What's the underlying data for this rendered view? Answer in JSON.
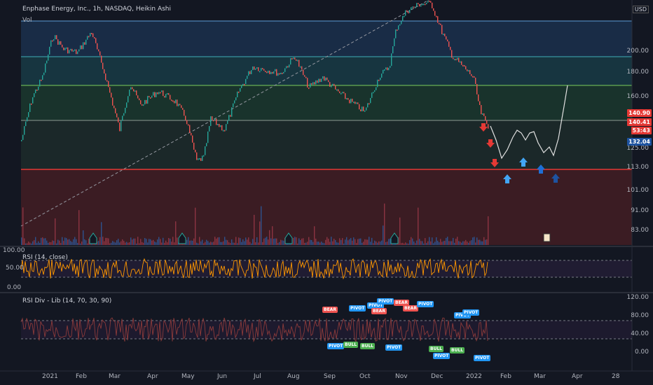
{
  "header": {
    "symbol_line": "Enphase Energy, Inc., 1h, NASDAQ, Heikin Ashi",
    "volume_label": "Vol",
    "currency": "USD"
  },
  "price_scale": {
    "labels": [
      "200.00",
      "180.00",
      "160.00",
      "125.00",
      "113.00",
      "101.00",
      "91.00",
      "83.00"
    ],
    "tags": [
      {
        "text": "140.90",
        "color": "#e53935"
      },
      {
        "text": "140.41",
        "color": "#e53935"
      },
      {
        "text": "53:43",
        "color": "#e53935"
      },
      {
        "text": "132.04",
        "color": "#1e53a0"
      }
    ]
  },
  "rsi_pane": {
    "title": "RSI (14, close)",
    "labels": [
      "100.00",
      "50.00",
      "0.00"
    ]
  },
  "div_pane": {
    "title": "RSI Div - Lib (14, 70, 30, 90)",
    "labels": [
      "120.00",
      "80.00",
      "40.00",
      "0.00"
    ]
  },
  "time_axis": {
    "labels": [
      "2021",
      "Feb",
      "Mar",
      "Apr",
      "May",
      "Jun",
      "Jul",
      "Aug",
      "Sep",
      "Oct",
      "Nov",
      "Dec",
      "2022",
      "Feb",
      "Mar",
      "Apr",
      "28"
    ]
  },
  "signals": {
    "bear_label": "BEAR",
    "bull_label": "BULL",
    "pivot_label": "PIVOT"
  },
  "colors": {
    "bg": "#131722",
    "up": "#26a69a",
    "down": "#ef5350",
    "rsi": "#ff9800",
    "accent_blue": "#2196f3"
  }
}
